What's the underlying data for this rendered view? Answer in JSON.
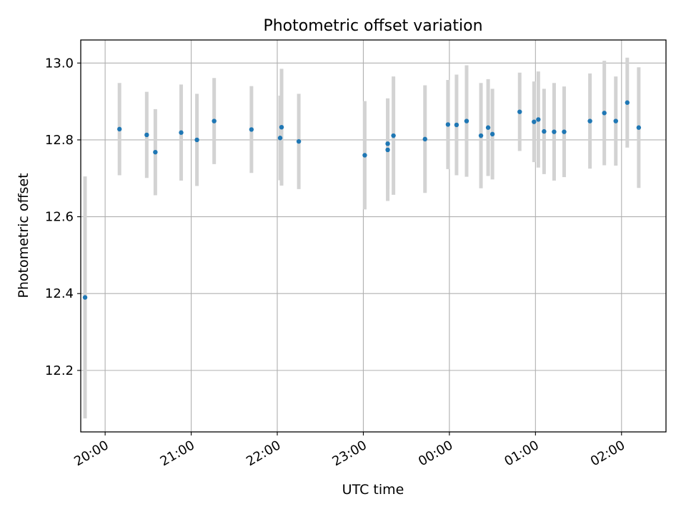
{
  "chart_data": {
    "type": "scatter",
    "title": "Photometric offset variation",
    "xlabel": "UTC time",
    "ylabel": "Photometric offset",
    "x_axis_type": "time",
    "xlim": [
      "19:43",
      "02:31"
    ],
    "ylim": [
      12.04,
      13.06
    ],
    "x_ticks": [
      "20:00",
      "21:00",
      "22:00",
      "23:00",
      "00:00",
      "01:00",
      "02:00"
    ],
    "x_tick_values": [
      "20:00",
      "21:00",
      "22:00",
      "23:00",
      "00:00",
      "01:00",
      "02:00"
    ],
    "y_ticks": [
      12.2,
      12.4,
      12.6,
      12.8,
      13.0
    ],
    "y_tick_labels": [
      "12.2",
      "12.4",
      "12.6",
      "12.8",
      "13.0"
    ],
    "grid": true,
    "point_color": "#1f77b4",
    "errorbar_color": "#d3d3d3",
    "points": [
      {
        "time": "19:46",
        "y": 12.39,
        "err": 0.315
      },
      {
        "time": "20:10",
        "y": 12.828,
        "err": 0.12
      },
      {
        "time": "20:29",
        "y": 12.813,
        "err": 0.112
      },
      {
        "time": "20:35",
        "y": 12.768,
        "err": 0.112
      },
      {
        "time": "20:53",
        "y": 12.819,
        "err": 0.125
      },
      {
        "time": "21:04",
        "y": 12.8,
        "err": 0.12
      },
      {
        "time": "21:16",
        "y": 12.849,
        "err": 0.112
      },
      {
        "time": "21:42",
        "y": 12.827,
        "err": 0.113
      },
      {
        "time": "22:02",
        "y": 12.805,
        "err": 0.11
      },
      {
        "time": "22:03",
        "y": 12.833,
        "err": 0.152
      },
      {
        "time": "22:15",
        "y": 12.796,
        "err": 0.124
      },
      {
        "time": "23:01",
        "y": 12.76,
        "err": 0.141
      },
      {
        "time": "23:17",
        "y": 12.79,
        "err": 0.118
      },
      {
        "time": "23:17",
        "y": 12.774,
        "err": 0.133
      },
      {
        "time": "23:21",
        "y": 12.811,
        "err": 0.154
      },
      {
        "time": "23:43",
        "y": 12.802,
        "err": 0.14
      },
      {
        "time": "23:59",
        "y": 12.84,
        "err": 0.116
      },
      {
        "time": "00:05",
        "y": 12.839,
        "err": 0.131
      },
      {
        "time": "00:12",
        "y": 12.849,
        "err": 0.145
      },
      {
        "time": "00:22",
        "y": 12.811,
        "err": 0.137
      },
      {
        "time": "00:27",
        "y": 12.832,
        "err": 0.126
      },
      {
        "time": "00:30",
        "y": 12.815,
        "err": 0.118
      },
      {
        "time": "00:49",
        "y": 12.873,
        "err": 0.102
      },
      {
        "time": "00:59",
        "y": 12.847,
        "err": 0.105
      },
      {
        "time": "01:02",
        "y": 12.853,
        "err": 0.125
      },
      {
        "time": "01:06",
        "y": 12.822,
        "err": 0.111
      },
      {
        "time": "01:13",
        "y": 12.821,
        "err": 0.127
      },
      {
        "time": "01:20",
        "y": 12.821,
        "err": 0.118
      },
      {
        "time": "01:38",
        "y": 12.849,
        "err": 0.124
      },
      {
        "time": "01:48",
        "y": 12.87,
        "err": 0.136
      },
      {
        "time": "01:56",
        "y": 12.849,
        "err": 0.116
      },
      {
        "time": "02:04",
        "y": 12.897,
        "err": 0.117
      },
      {
        "time": "02:12",
        "y": 12.832,
        "err": 0.157
      }
    ]
  }
}
